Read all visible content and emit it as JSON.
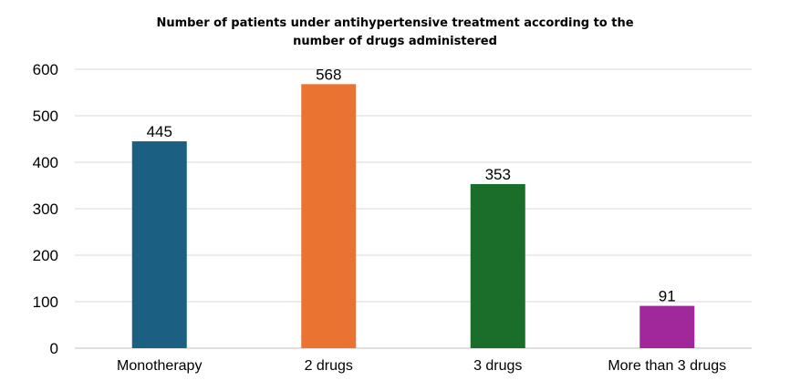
{
  "chart_data": {
    "type": "bar",
    "title_lines": [
      "Number of patients under antihypertensive treatment according to the",
      "number of drugs administered"
    ],
    "categories": [
      "Monotherapy",
      "2 drugs",
      "3 drugs",
      "More than 3 drugs"
    ],
    "values": [
      445,
      568,
      353,
      91
    ],
    "data_labels": [
      "445",
      "568",
      "353",
      "91"
    ],
    "colors": [
      "#1b6083",
      "#ea7331",
      "#1a6e2a",
      "#a0289a"
    ],
    "ylim": [
      0,
      600
    ],
    "yticks": [
      "0",
      "100",
      "200",
      "300",
      "400",
      "500",
      "600"
    ],
    "grid": true,
    "legend": "none",
    "xlabel": "",
    "ylabel": ""
  }
}
